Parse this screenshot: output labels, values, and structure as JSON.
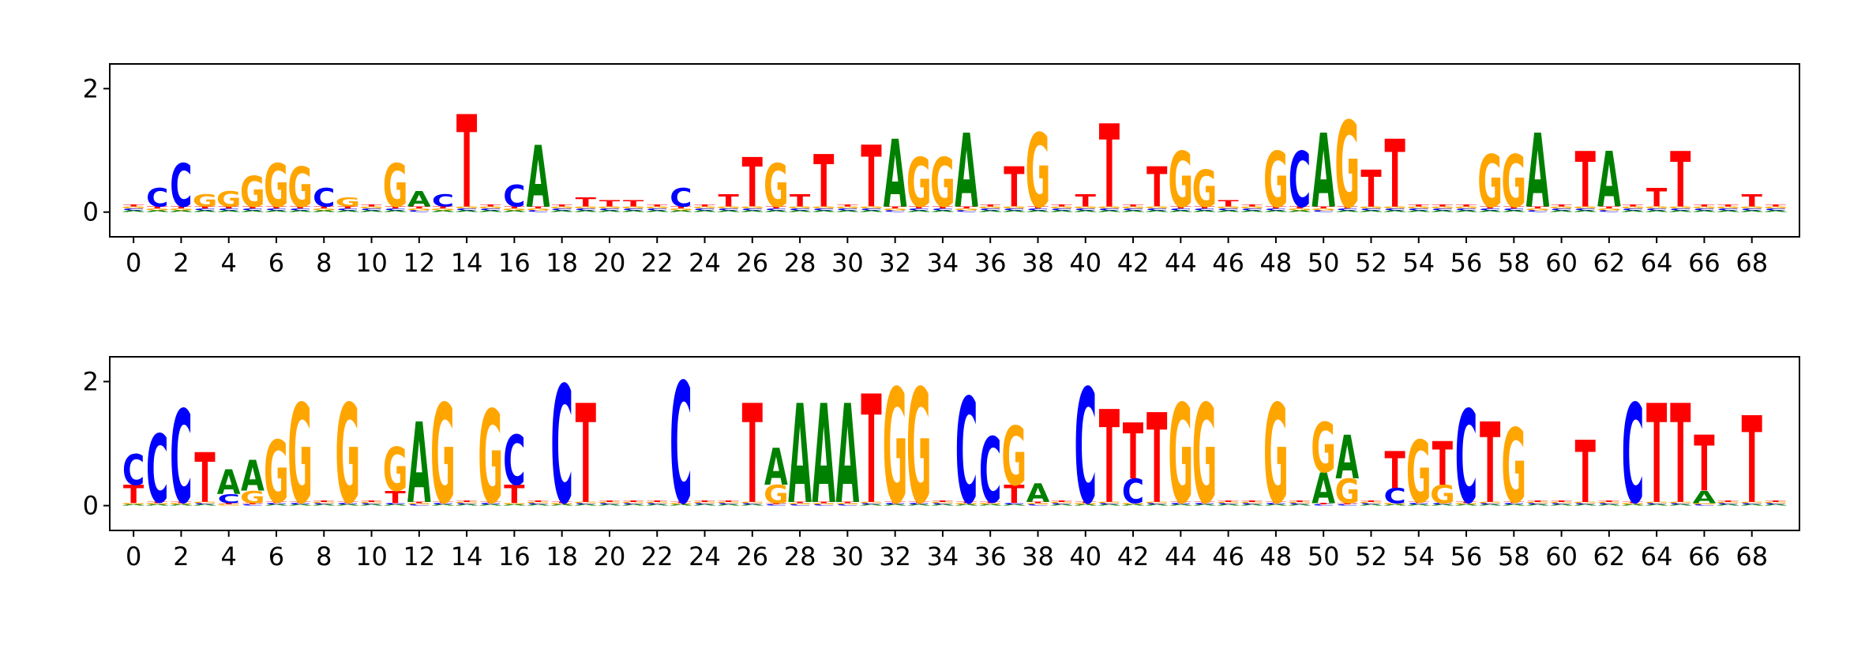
{
  "chart_data": [
    {
      "type": "logo",
      "xlim": [
        -1,
        70
      ],
      "ylim": [
        -0.4,
        2.4
      ],
      "xticks": [
        0,
        2,
        4,
        6,
        8,
        10,
        12,
        14,
        16,
        18,
        20,
        22,
        24,
        26,
        28,
        30,
        32,
        34,
        36,
        38,
        40,
        42,
        44,
        46,
        48,
        50,
        52,
        54,
        56,
        58,
        60,
        62,
        64,
        66,
        68
      ],
      "yticks": [
        0,
        2
      ],
      "series": [
        {
          "name": "A",
          "color": "#008000",
          "values": [
            0.03,
            0.03,
            0.03,
            0.03,
            0.03,
            0.03,
            0.03,
            0.03,
            0.03,
            0.03,
            0.03,
            0.03,
            0.25,
            0.03,
            0.03,
            0.03,
            0.03,
            1.0,
            0.03,
            0.03,
            0.03,
            0.03,
            0.03,
            0.03,
            0.03,
            0.03,
            0.03,
            0.03,
            0.03,
            0.03,
            0.03,
            0.03,
            1.1,
            0.03,
            0.03,
            1.2,
            0.03,
            0.03,
            0.03,
            0.03,
            0.03,
            0.03,
            0.03,
            0.03,
            0.03,
            0.03,
            0.03,
            0.03,
            0.03,
            0.03,
            1.2,
            0.03,
            0.03,
            0.03,
            0.03,
            0.03,
            0.03,
            0.03,
            0.03,
            1.2,
            0.03,
            0.03,
            0.9,
            0.03,
            0.03,
            0.03,
            0.03,
            0.03,
            0.03,
            0.03
          ]
        },
        {
          "name": "C",
          "color": "#0000ff",
          "values": [
            0.03,
            0.3,
            0.7,
            0.03,
            0.03,
            0.03,
            0.03,
            0.03,
            0.3,
            0.03,
            0.03,
            0.03,
            0.03,
            0.2,
            0.03,
            0.03,
            0.35,
            0.03,
            0.03,
            0.03,
            0.03,
            0.03,
            0.03,
            0.3,
            0.03,
            0.03,
            0.03,
            0.03,
            0.03,
            0.03,
            0.03,
            0.03,
            0.03,
            0.03,
            0.03,
            0.03,
            0.03,
            0.03,
            0.03,
            0.03,
            0.03,
            0.03,
            0.03,
            0.03,
            0.03,
            0.03,
            0.03,
            0.03,
            0.03,
            0.9,
            0.03,
            0.03,
            0.03,
            0.03,
            0.03,
            0.03,
            0.03,
            0.03,
            0.03,
            0.03,
            0.03,
            0.03,
            0.03,
            0.03,
            0.03,
            0.03,
            0.03,
            0.03,
            0.03,
            0.03
          ]
        },
        {
          "name": "G",
          "color": "#ffa500",
          "values": [
            0.03,
            0.03,
            0.03,
            0.2,
            0.25,
            0.5,
            0.7,
            0.65,
            0.03,
            0.15,
            0.03,
            0.7,
            0.03,
            0.03,
            0.03,
            0.03,
            0.03,
            0.03,
            0.03,
            0.03,
            0.03,
            0.03,
            0.03,
            0.03,
            0.03,
            0.03,
            0.03,
            0.7,
            0.03,
            0.03,
            0.03,
            0.03,
            0.03,
            0.8,
            0.8,
            0.03,
            0.03,
            0.03,
            1.2,
            0.03,
            0.03,
            0.03,
            0.03,
            0.03,
            0.9,
            0.6,
            0.03,
            0.03,
            0.9,
            0.03,
            0.03,
            1.4,
            0.03,
            0.03,
            0.03,
            0.03,
            0.03,
            0.85,
            0.85,
            0.03,
            0.03,
            0.03,
            0.03,
            0.03,
            0.03,
            0.03,
            0.03,
            0.03,
            0.03,
            0.03
          ]
        },
        {
          "name": "T",
          "color": "#ff0000",
          "values": [
            0.03,
            0.03,
            0.03,
            0.03,
            0.03,
            0.03,
            0.03,
            0.03,
            0.03,
            0.03,
            0.03,
            0.03,
            0.03,
            0.03,
            1.5,
            0.03,
            0.03,
            0.03,
            0.03,
            0.15,
            0.1,
            0.1,
            0.03,
            0.03,
            0.03,
            0.2,
            0.8,
            0.03,
            0.2,
            0.85,
            0.03,
            1.0,
            0.03,
            0.03,
            0.03,
            0.03,
            0.03,
            0.65,
            0.03,
            0.03,
            0.2,
            1.35,
            0.03,
            0.65,
            0.03,
            0.03,
            0.1,
            0.03,
            0.03,
            0.03,
            0.03,
            0.03,
            0.6,
            1.1,
            0.03,
            0.03,
            0.03,
            0.03,
            0.03,
            0.03,
            0.03,
            0.9,
            0.03,
            0.03,
            0.3,
            0.9,
            0.03,
            0.03,
            0.2,
            0.03
          ]
        }
      ]
    },
    {
      "type": "logo",
      "xlim": [
        -1,
        70
      ],
      "ylim": [
        -0.4,
        2.4
      ],
      "xticks": [
        0,
        2,
        4,
        6,
        8,
        10,
        12,
        14,
        16,
        18,
        20,
        22,
        24,
        26,
        28,
        30,
        32,
        34,
        36,
        38,
        40,
        42,
        44,
        46,
        48,
        50,
        52,
        54,
        56,
        58,
        60,
        62,
        64,
        66,
        68
      ],
      "yticks": [
        0,
        2
      ],
      "series": [
        {
          "name": "A",
          "color": "#008000",
          "values": [
            0.02,
            0.02,
            0.02,
            0.02,
            0.4,
            0.5,
            0.02,
            0.02,
            0.02,
            0.02,
            0.02,
            0.02,
            1.3,
            0.02,
            0.02,
            0.02,
            0.02,
            0.02,
            0.02,
            0.02,
            0.02,
            0.02,
            0.02,
            0.02,
            0.02,
            0.02,
            0.02,
            0.6,
            1.6,
            1.6,
            1.6,
            0.02,
            0.02,
            0.02,
            0.02,
            0.02,
            0.02,
            0.02,
            0.3,
            0.02,
            0.02,
            0.02,
            0.02,
            0.02,
            0.02,
            0.02,
            0.02,
            0.02,
            0.02,
            0.02,
            0.5,
            0.7,
            0.02,
            0.02,
            0.02,
            0.02,
            0.02,
            0.02,
            0.02,
            0.02,
            0.02,
            0.02,
            0.02,
            0.02,
            0.02,
            0.02,
            0.2,
            0.02,
            0.02,
            0.02
          ]
        },
        {
          "name": "C",
          "color": "#0000ff",
          "values": [
            0.5,
            1.1,
            1.5,
            0.02,
            0.15,
            0.02,
            0.02,
            0.02,
            0.02,
            0.02,
            0.02,
            0.02,
            0.02,
            0.02,
            0.02,
            0.02,
            0.8,
            0.02,
            1.9,
            0.02,
            0.02,
            0.02,
            0.02,
            1.95,
            0.02,
            0.02,
            0.02,
            0.02,
            0.02,
            0.02,
            0.02,
            0.02,
            0.02,
            0.02,
            0.02,
            1.7,
            1.05,
            0.02,
            0.02,
            0.02,
            1.85,
            0.02,
            0.4,
            0.02,
            0.02,
            0.02,
            0.02,
            0.02,
            0.02,
            0.02,
            0.02,
            0.02,
            0.02,
            0.25,
            0.02,
            0.02,
            1.5,
            0.02,
            0.02,
            0.02,
            0.02,
            0.02,
            0.02,
            1.6,
            0.02,
            0.02,
            0.02,
            0.02,
            0.02,
            0.02
          ]
        },
        {
          "name": "G",
          "color": "#ffa500",
          "values": [
            0.02,
            0.02,
            0.02,
            0.02,
            0.02,
            0.2,
            1.0,
            1.6,
            0.02,
            1.6,
            0.02,
            0.7,
            0.02,
            1.6,
            0.02,
            1.5,
            0.02,
            0.02,
            0.02,
            0.02,
            0.02,
            0.02,
            0.02,
            0.02,
            0.02,
            0.02,
            0.02,
            0.3,
            0.02,
            0.02,
            0.02,
            0.02,
            1.85,
            1.85,
            0.02,
            0.02,
            0.02,
            0.95,
            0.02,
            0.02,
            0.02,
            0.02,
            0.02,
            0.02,
            1.6,
            1.6,
            0.02,
            0.02,
            1.6,
            0.02,
            0.8,
            0.4,
            0.02,
            0.02,
            1.0,
            0.3,
            0.02,
            0.02,
            1.2,
            0.02,
            0.02,
            0.02,
            0.02,
            0.02,
            0.02,
            0.02,
            0.02,
            0.02,
            0.02,
            0.02
          ]
        },
        {
          "name": "T",
          "color": "#ff0000",
          "values": [
            0.3,
            0.02,
            0.02,
            0.8,
            0.02,
            0.02,
            0.02,
            0.02,
            0.02,
            0.02,
            0.02,
            0.2,
            0.02,
            0.02,
            0.02,
            0.02,
            0.3,
            0.02,
            0.02,
            1.6,
            0.02,
            0.02,
            0.02,
            0.02,
            0.02,
            0.02,
            1.6,
            0.02,
            0.02,
            0.02,
            0.02,
            1.75,
            0.02,
            0.02,
            0.02,
            0.02,
            0.02,
            0.3,
            0.02,
            0.02,
            0.02,
            1.5,
            0.9,
            1.45,
            0.02,
            0.02,
            0.02,
            0.02,
            0.02,
            0.02,
            0.02,
            0.02,
            0.02,
            0.6,
            0.02,
            0.7,
            0.02,
            1.3,
            0.02,
            0.02,
            0.02,
            1.0,
            0.02,
            0.02,
            1.6,
            1.6,
            0.9,
            0.02,
            1.4,
            0.02
          ]
        }
      ]
    }
  ]
}
